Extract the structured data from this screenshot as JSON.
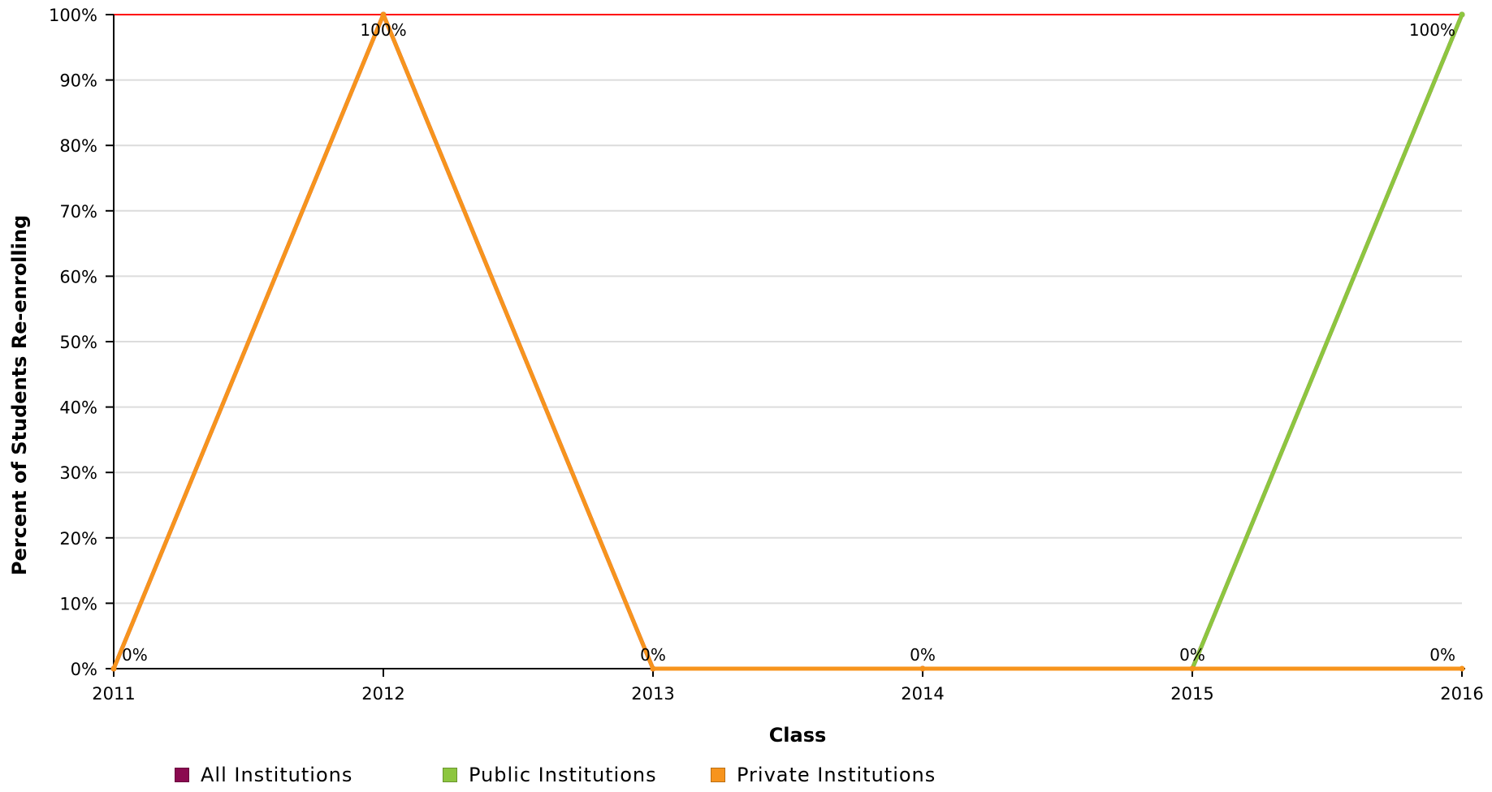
{
  "chart_data": {
    "type": "line",
    "title": "",
    "xlabel": "Class",
    "ylabel": "Percent of Students Re-enrolling",
    "x": [
      "2011",
      "2012",
      "2013",
      "2014",
      "2015",
      "2016"
    ],
    "ylim": [
      0,
      100
    ],
    "yticks": [
      0,
      10,
      20,
      30,
      40,
      50,
      60,
      70,
      80,
      90,
      100
    ],
    "ytick_labels": [
      "0%",
      "10%",
      "20%",
      "30%",
      "40%",
      "50%",
      "60%",
      "70%",
      "80%",
      "90%",
      "100%"
    ],
    "grid": true,
    "legend_position": "bottom-left",
    "reference_line": {
      "value": 100,
      "color": "#ff0000"
    },
    "series": [
      {
        "name": "All Institutions",
        "color": "#8b0a50",
        "values": [
          0,
          100,
          0,
          0,
          0,
          100
        ]
      },
      {
        "name": "Public Institutions",
        "color": "#8dc63f",
        "values": [
          null,
          null,
          null,
          null,
          0,
          100
        ]
      },
      {
        "name": "Private Institutions",
        "color": "#f7941d",
        "values": [
          0,
          100,
          0,
          0,
          0,
          0
        ]
      }
    ],
    "data_labels": [
      {
        "x": "2011",
        "text": "0%"
      },
      {
        "x": "2012",
        "text": "100%"
      },
      {
        "x": "2013",
        "text": "0%"
      },
      {
        "x": "2014",
        "text": "0%"
      },
      {
        "x": "2015",
        "text": "0%"
      },
      {
        "x": "2016",
        "text": "100%"
      },
      {
        "x": "2016",
        "text": "0%"
      }
    ]
  }
}
